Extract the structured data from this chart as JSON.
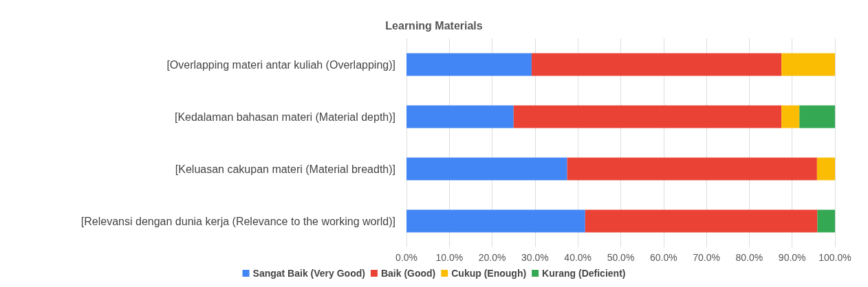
{
  "chart_data": {
    "type": "bar",
    "orientation": "horizontal",
    "stacked": true,
    "title": "Learning Materials",
    "categories": [
      "[Overlapping materi antar kuliah (Overlapping)]",
      "[Kedalaman bahasan materi (Material depth)]",
      "[Keluasan cakupan materi (Material breadth)]",
      "[Relevansi dengan dunia kerja (Relevance to the working world)]"
    ],
    "series": [
      {
        "name": "Sangat Baik (Very Good)",
        "color": "#4285f4",
        "values": [
          29.2,
          25.0,
          37.5,
          41.7
        ]
      },
      {
        "name": "Baik (Good)",
        "color": "#ea4335",
        "values": [
          58.3,
          62.5,
          58.3,
          54.2
        ]
      },
      {
        "name": "Cukup (Enough)",
        "color": "#fbbc04",
        "values": [
          12.5,
          4.2,
          4.2,
          null
        ]
      },
      {
        "name": "Kurang (Deficient)",
        "color": "#34a853",
        "values": [
          null,
          8.3,
          null,
          4.1
        ]
      }
    ],
    "xlim": [
      0,
      100
    ],
    "xticks": [
      {
        "value": 0,
        "label": "0.0%"
      },
      {
        "value": 10,
        "label": "10.0%"
      },
      {
        "value": 20,
        "label": "20.0%"
      },
      {
        "value": 30,
        "label": "30.0%"
      },
      {
        "value": 40,
        "label": "40.0%"
      },
      {
        "value": 50,
        "label": "50.0%"
      },
      {
        "value": 60,
        "label": "60.0%"
      },
      {
        "value": 70,
        "label": "70.0%"
      },
      {
        "value": 80,
        "label": "80.0%"
      },
      {
        "value": 90,
        "label": "90.0%"
      },
      {
        "value": 100,
        "label": "100.0%"
      }
    ],
    "grid": "x",
    "legend": "bottom"
  }
}
